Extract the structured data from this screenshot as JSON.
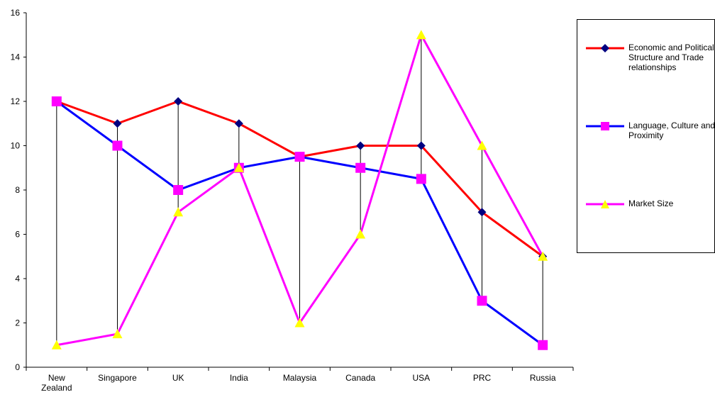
{
  "chart_data": {
    "type": "line",
    "categories": [
      "New Zealand",
      "Singapore",
      "UK",
      "India",
      "Malaysia",
      "Canada",
      "USA",
      "PRC",
      "Russia"
    ],
    "category_lines": [
      [
        "New",
        "Zealand"
      ],
      [
        "Singapore"
      ],
      [
        "UK"
      ],
      [
        "India"
      ],
      [
        "Malaysia"
      ],
      [
        "Canada"
      ],
      [
        "USA"
      ],
      [
        "PRC"
      ],
      [
        "Russia"
      ]
    ],
    "ylim": [
      0,
      16
    ],
    "yticks": [
      "0",
      "2",
      "4",
      "6",
      "8",
      "10",
      "12",
      "14",
      "16"
    ],
    "high_low_lines": true,
    "grid": false,
    "legend_position": "right",
    "series": [
      {
        "name": "Economic and Political Structure and Trade relationships",
        "name_lines": [
          "Economic and Political",
          "Structure and Trade",
          "relationships"
        ],
        "values": [
          12,
          11,
          12,
          11,
          9.5,
          10,
          10,
          7,
          5
        ],
        "line_color": "#ff0000",
        "marker": "diamond",
        "marker_color": "#000080"
      },
      {
        "name": "Language, Culture and Proximity",
        "name_lines": [
          "Language, Culture and",
          "Proximity"
        ],
        "values": [
          12,
          10,
          8,
          9,
          9.5,
          9,
          8.5,
          3,
          1
        ],
        "line_color": "#0000ff",
        "marker": "square",
        "marker_color": "#ff00ff"
      },
      {
        "name": "Market Size",
        "name_lines": [
          "Market Size"
        ],
        "values": [
          1,
          1.5,
          7,
          9,
          2,
          6,
          15,
          10,
          5
        ],
        "line_color": "#ff00ff",
        "marker": "triangle",
        "marker_color": "#ffff00"
      }
    ]
  }
}
